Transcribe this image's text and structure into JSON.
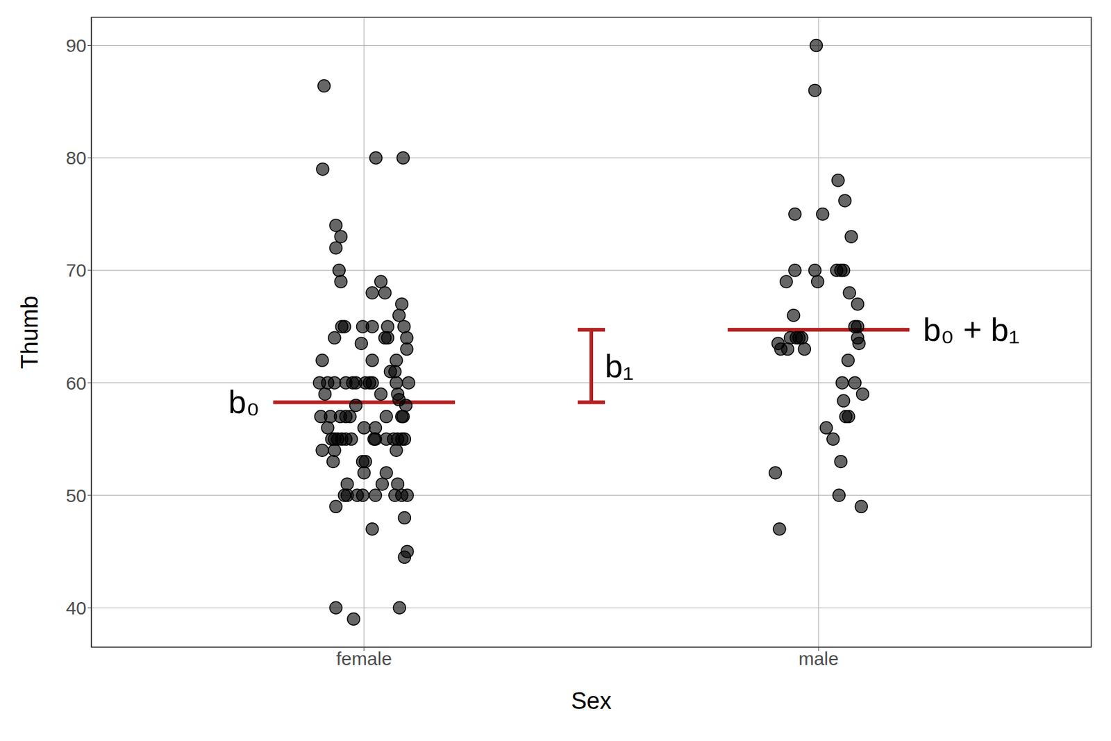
{
  "chart_data": {
    "type": "scatter",
    "x_label": "Sex",
    "y_label": "Thumb",
    "xlim": [
      0.4,
      2.6
    ],
    "xticks": [
      {
        "value": 1,
        "label": "female"
      },
      {
        "value": 2,
        "label": "male"
      }
    ],
    "ylim": [
      36.5,
      92.5
    ],
    "yticks": [
      40,
      50,
      60,
      70,
      80,
      90
    ],
    "grid": true,
    "color": "#000000",
    "marker": "circle",
    "x": [
      0.912,
      0.909,
      1.026,
      1.086,
      0.938,
      0.949,
      0.938,
      0.945,
      0.949,
      1.037,
      1.018,
      1.046,
      1.083,
      1.077,
      0.951,
      0.957,
      0.997,
      1.018,
      1.052,
      1.088,
      0.935,
      1.046,
      1.052,
      1.094,
      0.994,
      1.094,
      0.908,
      1.018,
      1.071,
      1.058,
      1.068,
      0.902,
      0.92,
      0.935,
      0.96,
      0.975,
      0.982,
      1.003,
      1.012,
      1.018,
      1.071,
      1.098,
      0.914,
      1.037,
      1.074,
      0.982,
      1.092,
      1.077,
      0.905,
      0.926,
      0.948,
      0.96,
      0.969,
      1.049,
      1.083,
      1.086,
      0.92,
      1.0,
      1.025,
      0.929,
      0.935,
      0.942,
      0.951,
      0.96,
      0.972,
      1.022,
      1.025,
      1.049,
      1.065,
      1.074,
      1.083,
      1.089,
      0.908,
      0.935,
      1.071,
      0.932,
      0.997,
      1.003,
      0.963,
      1.04,
      1.074,
      1.0,
      1.049,
      0.957,
      0.963,
      0.985,
      0.997,
      1.025,
      1.068,
      1.083,
      1.095,
      1.089,
      0.938,
      1.018,
      1.095,
      1.089,
      0.938,
      1.078,
      0.977,
      1.995,
      1.992,
      2.043,
      2.058,
      1.948,
      2.009,
      2.072,
      1.948,
      1.992,
      2.04,
      2.049,
      2.055,
      1.929,
      1.998,
      2.068,
      2.086,
      1.945,
      2.08,
      2.086,
      1.911,
      1.938,
      1.951,
      1.957,
      1.963,
      2.086,
      1.917,
      1.932,
      1.969,
      2.089,
      2.065,
      2.052,
      2.08,
      2.097,
      2.055,
      2.06,
      2.066,
      2.017,
      2.032,
      2.049,
      1.905,
      2.045,
      2.094,
      1.914
    ],
    "y": [
      86.4,
      79,
      80,
      80,
      74,
      73,
      72,
      70,
      69,
      69,
      68,
      68,
      67,
      66,
      65,
      65,
      65,
      65,
      65,
      65,
      64,
      64,
      64,
      64,
      63.5,
      63,
      62,
      62,
      62,
      61,
      61,
      60,
      60,
      60,
      60,
      60,
      60,
      60,
      60,
      60,
      60,
      60,
      59,
      59,
      59,
      58,
      58,
      58.5,
      57,
      57,
      57,
      57,
      57,
      57,
      57,
      57,
      56,
      56,
      56,
      55,
      55,
      55,
      55,
      55,
      55,
      55,
      55,
      55,
      55,
      55,
      55,
      55,
      54,
      54,
      54,
      53,
      53,
      53,
      51,
      51,
      51,
      52,
      52,
      50,
      50,
      50,
      50,
      50,
      50,
      50,
      50,
      48,
      49,
      47,
      45,
      44.5,
      40,
      40,
      39,
      90,
      86,
      78,
      76.2,
      75,
      75,
      73,
      70,
      70,
      70,
      70,
      70,
      69,
      69,
      68,
      67,
      66,
      65,
      65,
      63.5,
      64,
      64,
      64,
      64,
      64,
      63,
      63,
      63,
      63.5,
      62,
      60,
      60,
      59,
      58.4,
      57,
      57,
      56,
      55,
      53,
      52,
      50,
      49,
      47
    ],
    "mean_lines": [
      {
        "label": "b₀",
        "x": [
          0.8,
          1.2
        ],
        "y": 58.27,
        "color": "#b22222"
      },
      {
        "label": "b₀ + b₁",
        "x": [
          1.8,
          2.2
        ],
        "y": 64.72,
        "color": "#b22222"
      }
    ],
    "difference": {
      "label": "b₁",
      "x": 1.5,
      "y": [
        58.27,
        64.72
      ],
      "color": "#b22222"
    }
  }
}
